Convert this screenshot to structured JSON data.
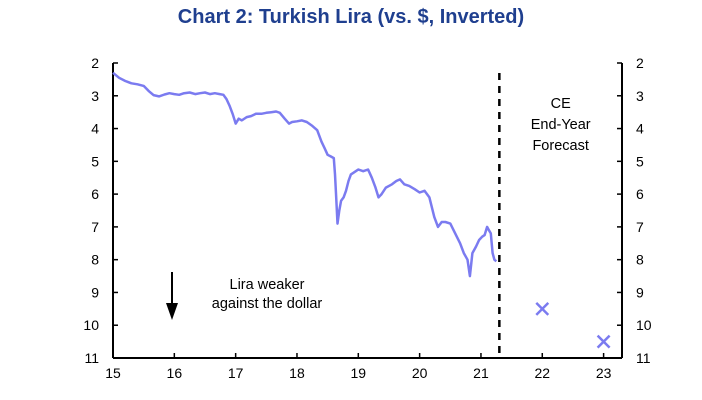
{
  "chart_data": {
    "type": "line",
    "title": "Chart 2: Turkish Lira (vs. $, Inverted)",
    "xlabel": "",
    "ylabel": "",
    "x_tick_labels": [
      "15",
      "16",
      "17",
      "18",
      "19",
      "20",
      "21",
      "22",
      "23"
    ],
    "y_tick_labels": [
      "2",
      "3",
      "4",
      "5",
      "6",
      "7",
      "8",
      "9",
      "10",
      "11"
    ],
    "xlim": [
      2015,
      2023.3
    ],
    "ylim": [
      2,
      11
    ],
    "y_inverted": true,
    "colors": {
      "series": "#7b7bf0",
      "axis": "#000000",
      "title": "#1f3f8f"
    },
    "series": [
      {
        "points": [
          [
            2015.0,
            2.3
          ],
          [
            2015.1,
            2.45
          ],
          [
            2015.2,
            2.55
          ],
          [
            2015.3,
            2.62
          ],
          [
            2015.4,
            2.65
          ],
          [
            2015.5,
            2.7
          ],
          [
            2015.58,
            2.85
          ],
          [
            2015.66,
            2.98
          ],
          [
            2015.75,
            3.02
          ],
          [
            2015.84,
            2.96
          ],
          [
            2015.92,
            2.92
          ],
          [
            2016.0,
            2.95
          ],
          [
            2016.08,
            2.97
          ],
          [
            2016.16,
            2.92
          ],
          [
            2016.25,
            2.9
          ],
          [
            2016.34,
            2.95
          ],
          [
            2016.42,
            2.92
          ],
          [
            2016.5,
            2.9
          ],
          [
            2016.58,
            2.95
          ],
          [
            2016.66,
            2.92
          ],
          [
            2016.74,
            2.95
          ],
          [
            2016.8,
            2.97
          ],
          [
            2016.85,
            3.1
          ],
          [
            2016.9,
            3.3
          ],
          [
            2016.95,
            3.55
          ],
          [
            2017.0,
            3.85
          ],
          [
            2017.05,
            3.7
          ],
          [
            2017.1,
            3.75
          ],
          [
            2017.18,
            3.65
          ],
          [
            2017.25,
            3.62
          ],
          [
            2017.33,
            3.55
          ],
          [
            2017.42,
            3.55
          ],
          [
            2017.5,
            3.52
          ],
          [
            2017.58,
            3.5
          ],
          [
            2017.66,
            3.48
          ],
          [
            2017.72,
            3.52
          ],
          [
            2017.8,
            3.7
          ],
          [
            2017.87,
            3.85
          ],
          [
            2017.92,
            3.8
          ],
          [
            2018.0,
            3.78
          ],
          [
            2018.08,
            3.75
          ],
          [
            2018.16,
            3.8
          ],
          [
            2018.25,
            3.92
          ],
          [
            2018.33,
            4.05
          ],
          [
            2018.4,
            4.4
          ],
          [
            2018.45,
            4.6
          ],
          [
            2018.5,
            4.8
          ],
          [
            2018.55,
            4.85
          ],
          [
            2018.6,
            4.9
          ],
          [
            2018.62,
            5.4
          ],
          [
            2018.64,
            6.1
          ],
          [
            2018.66,
            6.9
          ],
          [
            2018.69,
            6.5
          ],
          [
            2018.72,
            6.2
          ],
          [
            2018.76,
            6.1
          ],
          [
            2018.8,
            5.9
          ],
          [
            2018.84,
            5.6
          ],
          [
            2018.88,
            5.4
          ],
          [
            2018.92,
            5.35
          ],
          [
            2018.96,
            5.3
          ],
          [
            2019.0,
            5.25
          ],
          [
            2019.08,
            5.3
          ],
          [
            2019.16,
            5.25
          ],
          [
            2019.22,
            5.5
          ],
          [
            2019.28,
            5.8
          ],
          [
            2019.33,
            6.1
          ],
          [
            2019.38,
            6.0
          ],
          [
            2019.45,
            5.8
          ],
          [
            2019.55,
            5.7
          ],
          [
            2019.62,
            5.6
          ],
          [
            2019.68,
            5.55
          ],
          [
            2019.75,
            5.7
          ],
          [
            2019.83,
            5.75
          ],
          [
            2019.92,
            5.85
          ],
          [
            2020.0,
            5.95
          ],
          [
            2020.08,
            5.9
          ],
          [
            2020.16,
            6.1
          ],
          [
            2020.24,
            6.7
          ],
          [
            2020.3,
            7.0
          ],
          [
            2020.36,
            6.85
          ],
          [
            2020.42,
            6.85
          ],
          [
            2020.5,
            6.9
          ],
          [
            2020.58,
            7.2
          ],
          [
            2020.66,
            7.5
          ],
          [
            2020.72,
            7.8
          ],
          [
            2020.78,
            8.0
          ],
          [
            2020.82,
            8.5
          ],
          [
            2020.86,
            7.8
          ],
          [
            2020.92,
            7.6
          ],
          [
            2020.97,
            7.4
          ],
          [
            2021.02,
            7.3
          ],
          [
            2021.06,
            7.25
          ],
          [
            2021.1,
            7.0
          ],
          [
            2021.13,
            7.1
          ],
          [
            2021.16,
            7.2
          ],
          [
            2021.19,
            7.8
          ],
          [
            2021.22,
            8.0
          ],
          [
            2021.25,
            8.05
          ]
        ]
      }
    ],
    "forecast_points": [
      [
        2022,
        9.5
      ],
      [
        2023,
        10.5
      ]
    ],
    "forecast_divider_x": 2021.3,
    "forecast_label": [
      "CE",
      "End-Year",
      "Forecast"
    ],
    "annotation": [
      "Lira weaker",
      "against the dollar"
    ]
  }
}
